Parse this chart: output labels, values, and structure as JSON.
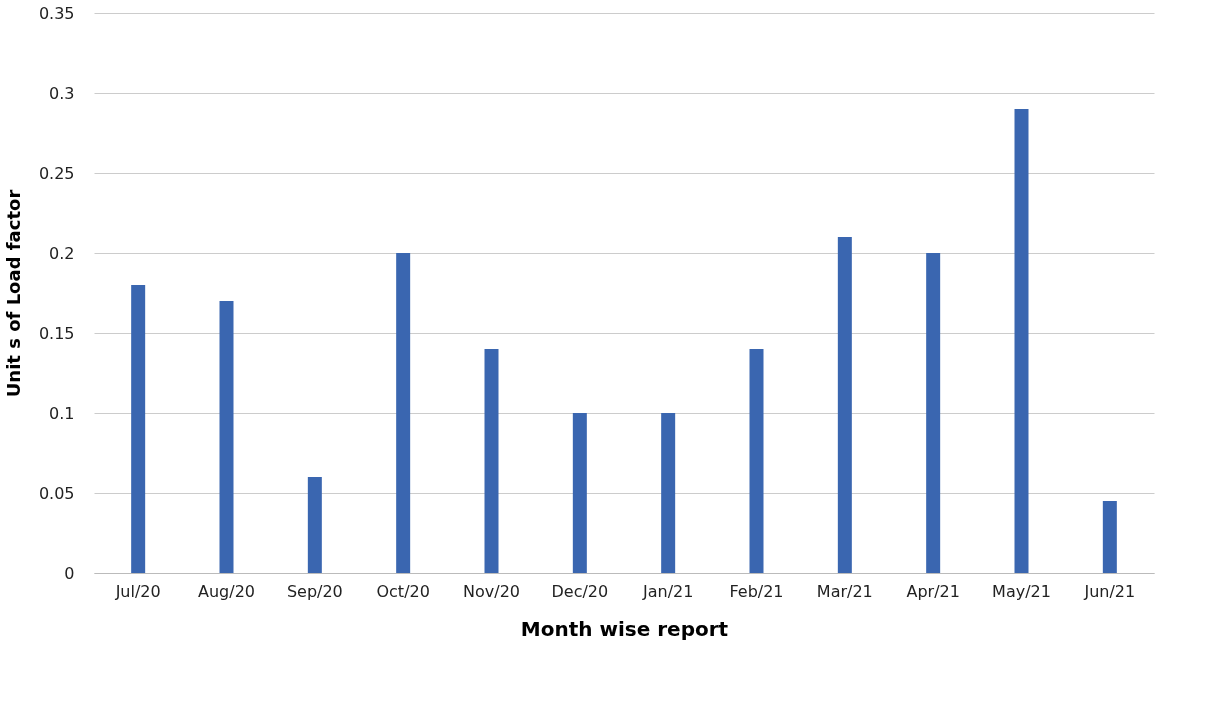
{
  "chart_data": {
    "type": "bar",
    "xlabel": "Month wise report",
    "ylabel": "Unit s of Load factor",
    "categories": [
      "Jul/20",
      "Aug/20",
      "Sep/20",
      "Oct/20",
      "Nov/20",
      "Dec/20",
      "Jan/21",
      "Feb/21",
      "Mar/21",
      "Apr/21",
      "May/21",
      "Jun/21"
    ],
    "values": [
      0.18,
      0.17,
      0.06,
      0.2,
      0.14,
      0.1,
      0.1,
      0.14,
      0.21,
      0.2,
      0.29,
      0.045
    ],
    "color": "#3a66b0",
    "ylim": [
      0,
      0.35
    ],
    "yticks": [
      0,
      0.05,
      0.1,
      0.15,
      0.2,
      0.25,
      0.3,
      0.35
    ],
    "grid": "y"
  }
}
